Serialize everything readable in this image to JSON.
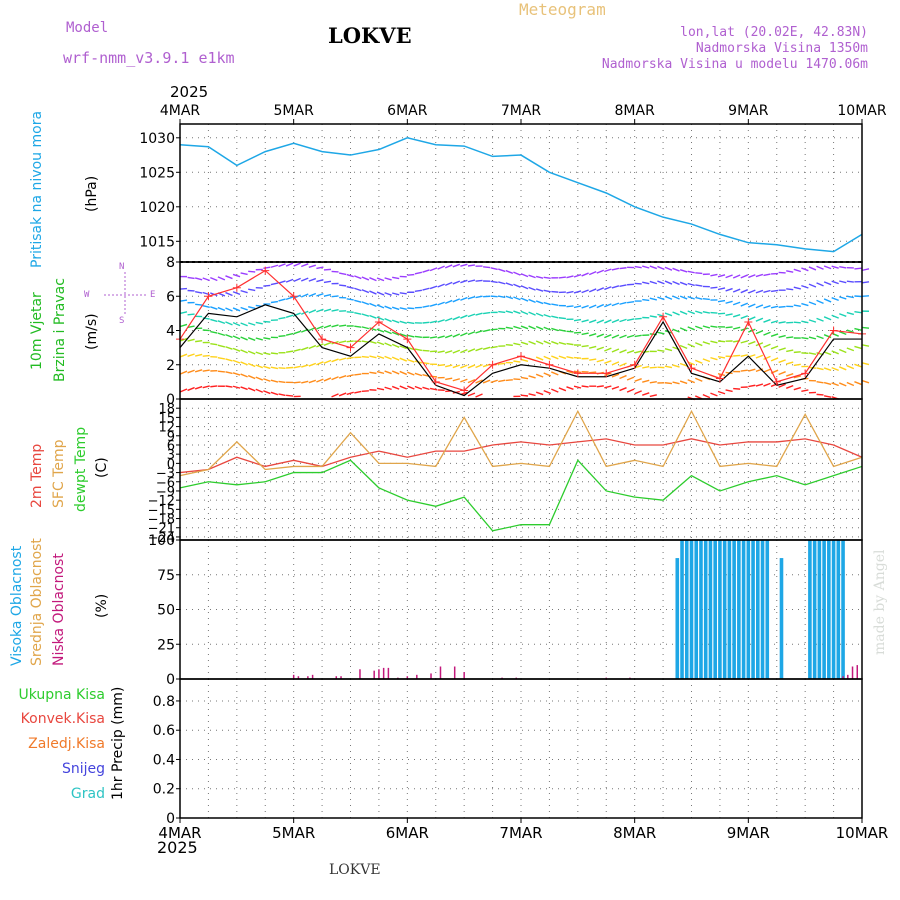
{
  "header": {
    "model_label": "Model",
    "model_name": "wrf-nmm_v3.9.1 e1km",
    "station": "LOKVE",
    "product": "Meteogram",
    "lonlat": "lon,lat (20.02E, 42.83N)",
    "altitude": "Nadmorska Visina 1350m",
    "model_altitude": "Nadmorska Visina u modelu 1470.06m",
    "footer_station": "LOKVE",
    "credit": "made by Angel"
  },
  "colors": {
    "pressure": "#1ea7e6",
    "wind_speed": "#000000",
    "wind_gust": "#ff3030",
    "temp2m": "#e8473f",
    "sfc_temp": "#e0a54a",
    "dewpoint": "#2dcc2d",
    "high_cloud": "#1ea7e6",
    "mid_cloud": "#e0a54a",
    "low_cloud": "#c2187b",
    "precip_total": "#2dcc2d",
    "precip_conv": "#e8473f",
    "precip_frozen": "#f07a2a",
    "snow": "#4444dd",
    "graupel": "#2ec4c4",
    "label_pressure": "#1ea7e6",
    "label_wind": "#22bb22",
    "label_model": "#b060d0"
  },
  "time_axis": {
    "year": "2025",
    "ticks": [
      "4MAR",
      "5MAR",
      "6MAR",
      "7MAR",
      "8MAR",
      "9MAR",
      "10MAR"
    ]
  },
  "panels": {
    "pressure": {
      "title": "Pritisak na nivou mora",
      "unit": "(hPa)"
    },
    "wind": {
      "title1": "10m Vjetar",
      "title2": "Brzina i Pravac",
      "unit": "(m/s)",
      "compass": {
        "n": "N",
        "s": "S",
        "e": "E",
        "w": "W"
      }
    },
    "temp": {
      "label_2m": "2m Temp",
      "label_sfc": "SFC Temp",
      "label_dew": "dewpt Temp",
      "unit": "(C)"
    },
    "cloud": {
      "label_high": "Visoka Oblacnost",
      "label_mid": "Srednja Oblacnost",
      "label_low": "Niska Oblacnost",
      "unit": "(%)"
    },
    "precip": {
      "labels": [
        "Ukupna Kisa",
        "Konvek.Kisa",
        "Zaledj.Kisa",
        "Snijeg",
        "Grad"
      ],
      "unit": "1hr Precip (mm)"
    }
  },
  "chart_data": [
    {
      "type": "line",
      "title": "",
      "ylabel": "(hPa)",
      "ylim": [
        1012,
        1032
      ],
      "yticks": [
        1015,
        1020,
        1025,
        1030
      ],
      "x_hours": [
        0,
        6,
        12,
        18,
        24,
        30,
        36,
        42,
        48,
        54,
        60,
        66,
        72,
        78,
        84,
        90,
        96,
        102,
        108,
        114,
        120,
        126,
        132,
        138,
        144
      ],
      "series": [
        {
          "name": "Pritisak na nivou mora",
          "values": [
            1029,
            1028.7,
            1026,
            1028,
            1029.2,
            1028,
            1027.5,
            1028.3,
            1030,
            1029,
            1028.8,
            1027.3,
            1027.5,
            1025,
            1023.5,
            1022,
            1020,
            1018.5,
            1017.5,
            1016,
            1014.8,
            1014.5,
            1013.9,
            1013.5,
            1016
          ]
        }
      ]
    },
    {
      "type": "line",
      "title": "",
      "ylabel": "(m/s)",
      "ylim": [
        0,
        8
      ],
      "yticks": [
        0,
        2,
        4,
        6,
        8
      ],
      "x_hours": [
        0,
        6,
        12,
        18,
        24,
        30,
        36,
        42,
        48,
        54,
        60,
        66,
        72,
        78,
        84,
        90,
        96,
        102,
        108,
        114,
        120,
        126,
        132,
        138,
        144
      ],
      "series": [
        {
          "name": "wind_speed",
          "values": [
            3,
            5,
            4.8,
            5.5,
            5,
            3,
            2.5,
            3.8,
            3,
            0.8,
            0.2,
            1.5,
            2,
            1.8,
            1.3,
            1.3,
            1.8,
            4.5,
            1.5,
            1,
            2.5,
            0.8,
            1.2,
            3.5,
            3.5
          ]
        },
        {
          "name": "wind_gust",
          "values": [
            3.5,
            6,
            6.5,
            7.5,
            6,
            3.5,
            3,
            4.5,
            3.5,
            1,
            0.5,
            2,
            2.5,
            2,
            1.5,
            1.5,
            2,
            4.8,
            1.8,
            1.2,
            4.5,
            1,
            1.5,
            4,
            3.8
          ]
        }
      ]
    },
    {
      "type": "line",
      "title": "",
      "ylabel": "(C)",
      "ylim": [
        -25,
        21
      ],
      "yticks": [
        18,
        15,
        12,
        9,
        6,
        3,
        0,
        -3,
        -6,
        -9,
        -12,
        -15,
        -18,
        -21,
        -24
      ],
      "x_hours": [
        0,
        6,
        12,
        18,
        24,
        30,
        36,
        42,
        48,
        54,
        60,
        66,
        72,
        78,
        84,
        90,
        96,
        102,
        108,
        114,
        120,
        126,
        132,
        138,
        144
      ],
      "series": [
        {
          "name": "2m Temp",
          "values": [
            -3,
            -2,
            2,
            -1,
            1,
            -1,
            2,
            4,
            2,
            4,
            4,
            6,
            7,
            6,
            7,
            8,
            6,
            6,
            8,
            6,
            7,
            7,
            8,
            6,
            2
          ]
        },
        {
          "name": "SFC Temp",
          "values": [
            -4,
            -2,
            7,
            -2,
            -1,
            -1,
            10,
            0,
            0,
            -1,
            15,
            -1,
            0,
            -1,
            17,
            -1,
            1,
            -1,
            17,
            -1,
            0,
            -1,
            16,
            -1,
            2
          ]
        },
        {
          "name": "dewpt Temp",
          "values": [
            -8,
            -6,
            -7,
            -6,
            -3,
            -3,
            1,
            -8,
            -12,
            -14,
            -11,
            -22,
            -20,
            -20,
            1,
            -9,
            -11,
            -12,
            -4,
            -9,
            -6,
            -4,
            -7,
            -4,
            -1
          ]
        }
      ]
    },
    {
      "type": "bar",
      "title": "",
      "ylabel": "(%)",
      "ylim": [
        0,
        100
      ],
      "yticks": [
        0,
        25,
        50,
        75,
        100
      ],
      "series": [
        {
          "name": "Visoka Oblacnost",
          "hours": [
            105,
            106,
            107,
            108,
            109,
            110,
            111,
            112,
            113,
            114,
            115,
            116,
            117,
            118,
            119,
            120,
            121,
            122,
            123,
            124,
            127,
            133,
            134,
            135,
            136,
            137,
            138,
            139,
            140
          ],
          "values": [
            87,
            100,
            100,
            100,
            100,
            100,
            100,
            100,
            100,
            100,
            100,
            100,
            100,
            100,
            100,
            100,
            100,
            100,
            100,
            100,
            87,
            100,
            100,
            100,
            100,
            100,
            100,
            100,
            100
          ]
        },
        {
          "name": "Niska Oblacnost",
          "hours": [
            24,
            25,
            27,
            28,
            33,
            34,
            38,
            41,
            42,
            43,
            44,
            46,
            48,
            50,
            53,
            55,
            58,
            60,
            68,
            71,
            90,
            95,
            140,
            141,
            142,
            143
          ],
          "values": [
            3,
            2,
            2,
            3,
            2,
            2,
            7,
            6,
            7,
            8,
            8,
            1,
            2,
            3,
            4,
            9,
            9,
            5,
            1,
            1,
            1,
            1,
            2,
            3,
            9,
            10
          ]
        }
      ]
    },
    {
      "type": "bar",
      "title": "",
      "ylabel": "1hr Precip (mm)",
      "ylim": [
        0,
        0.95
      ],
      "yticks": [
        0,
        0.2,
        0.4,
        0.6,
        0.8
      ],
      "series": [
        {
          "name": "Ukupna Kisa",
          "values": []
        }
      ]
    }
  ]
}
